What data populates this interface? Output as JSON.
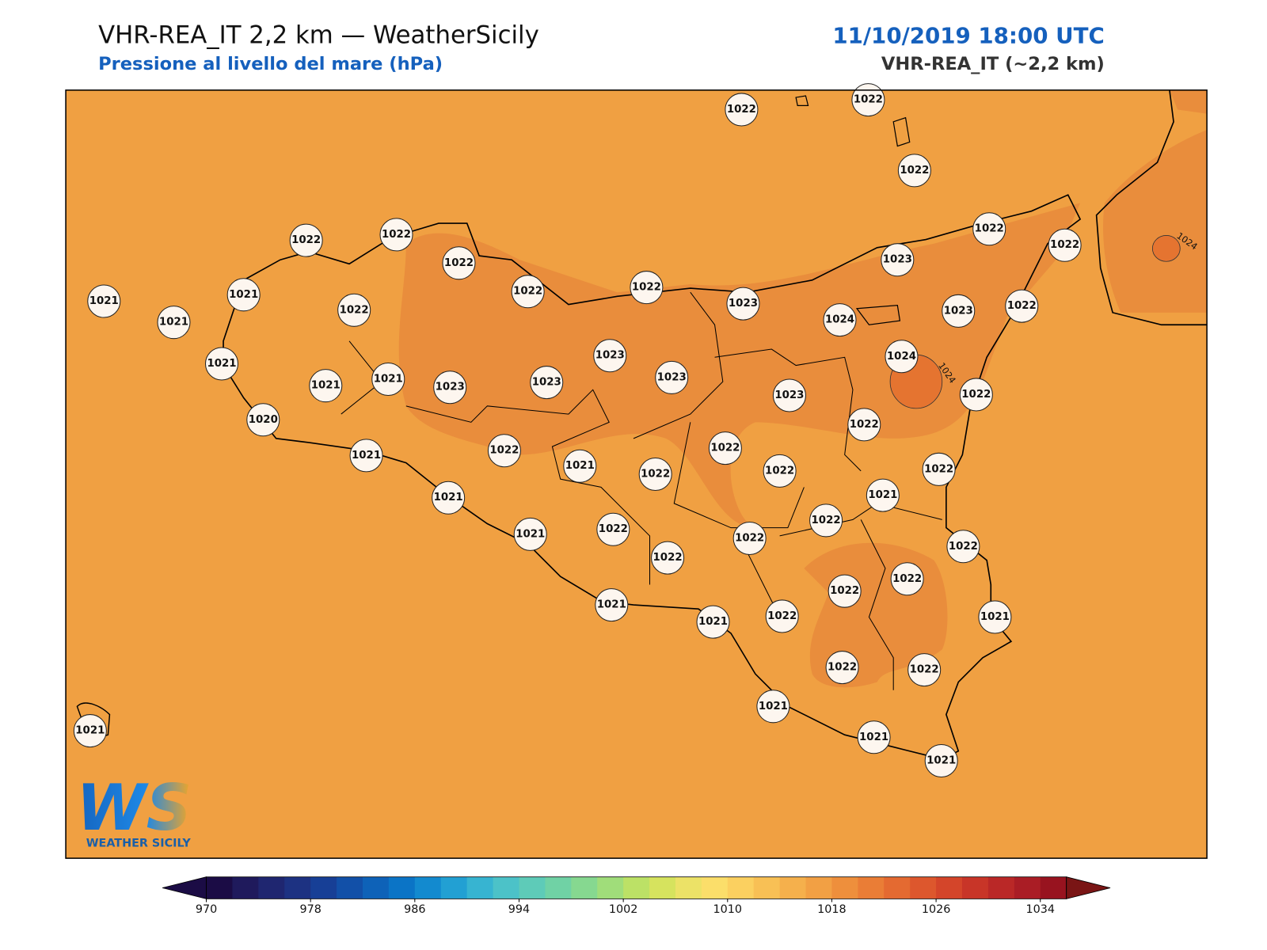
{
  "header": {
    "title": "VHR-REA_IT 2,2 km — WeatherSicily",
    "subtitle": "Pressione al livello del mare (hPa)",
    "datetime": "11/10/2019 18:00 UTC",
    "model": "VHR-REA_IT (~2,2 km)"
  },
  "map": {
    "stations": [
      1022,
      1022,
      1022,
      1022,
      1022,
      1022,
      1022,
      1022,
      1022,
      1022,
      1023,
      1023,
      1024,
      1023,
      1022,
      1021,
      1021,
      1021,
      1022,
      1021,
      1021,
      1021,
      1023,
      1023,
      1023,
      1023,
      1024,
      1023,
      1022,
      1022,
      1020,
      1021,
      1022,
      1021,
      1022,
      1022,
      1022,
      1022,
      1021,
      1021,
      1022,
      1021,
      1022,
      1022,
      1022,
      1022,
      1022,
      1022,
      1021,
      1021,
      1022,
      1021,
      1022,
      1022,
      1021,
      1021,
      1021,
      1021
    ],
    "contour_labels": [
      1024,
      1024
    ]
  },
  "logo": {
    "mark": "WS",
    "text": "WEATHER SICILY"
  },
  "colorbar": {
    "range": [
      970,
      1036
    ],
    "ticks": [
      970,
      978,
      986,
      994,
      1002,
      1010,
      1018,
      1026,
      1034
    ]
  }
}
